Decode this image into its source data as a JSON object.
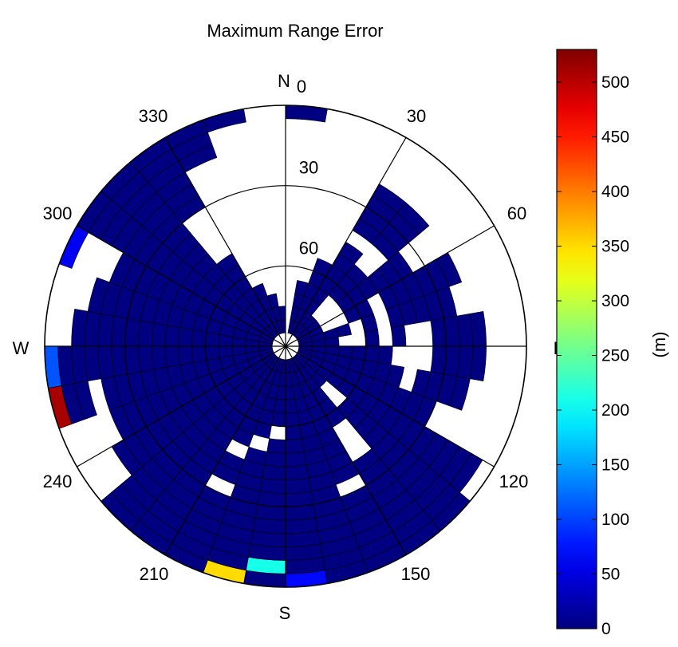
{
  "chart_data": {
    "type": "heatmap",
    "projection": "polar",
    "title": "Maximum Range Error",
    "azimuth_convention": "clockwise from north",
    "azimuth_ticks": [
      {
        "deg": 0,
        "label": "0"
      },
      {
        "deg": 30,
        "label": "30"
      },
      {
        "deg": 60,
        "label": "60"
      },
      {
        "deg": 120,
        "label": "120"
      },
      {
        "deg": 150,
        "label": "150"
      },
      {
        "deg": 210,
        "label": "210"
      },
      {
        "deg": 240,
        "label": "240"
      },
      {
        "deg": 300,
        "label": "300"
      },
      {
        "deg": 330,
        "label": "330"
      }
    ],
    "compass_labels": {
      "north": "N",
      "east": "E",
      "south": "S",
      "west": "W"
    },
    "elevation_ticks": [
      {
        "deg": 30,
        "label": "30"
      },
      {
        "deg": 60,
        "label": "60"
      }
    ],
    "elevation_range": [
      0,
      90
    ],
    "bin_width_deg": 10,
    "colorbar": {
      "label": "(m)",
      "range": [
        0,
        530
      ],
      "ticks": [
        {
          "value": 0,
          "label": "0"
        },
        {
          "value": 50,
          "label": "50"
        },
        {
          "value": 100,
          "label": "100"
        },
        {
          "value": 150,
          "label": "150"
        },
        {
          "value": 200,
          "label": "200"
        },
        {
          "value": 250,
          "label": "250"
        },
        {
          "value": 300,
          "label": "300"
        },
        {
          "value": 350,
          "label": "350"
        },
        {
          "value": 400,
          "label": "400"
        },
        {
          "value": 450,
          "label": "450"
        },
        {
          "value": 500,
          "label": "500"
        }
      ],
      "colormap": "jet"
    },
    "bins": [
      {
        "az": [
          0,
          10
        ],
        "elevations": [
          0
        ]
      },
      {
        "az": [
          10,
          20
        ],
        "elevations": [
          65,
          70,
          75,
          80
        ]
      },
      {
        "az": [
          20,
          30
        ],
        "elevations": [
          55,
          60,
          65,
          70,
          75,
          80
        ]
      },
      {
        "az": [
          30,
          40
        ],
        "elevations": [
          20,
          25,
          30,
          35,
          45,
          50,
          55,
          60,
          65,
          70,
          75,
          80
        ]
      },
      {
        "az": [
          40,
          50
        ],
        "elevations": [
          20,
          25,
          30,
          35,
          50,
          55,
          60,
          75,
          80
        ]
      },
      {
        "az": [
          50,
          60
        ],
        "elevations": [
          35,
          40,
          45,
          50,
          55,
          60,
          75,
          80
        ]
      },
      {
        "az": [
          60,
          70
        ],
        "elevations": [
          20,
          25,
          30,
          35,
          40,
          45,
          55,
          60,
          75,
          80
        ]
      },
      {
        "az": [
          70,
          80
        ],
        "elevations": [
          25,
          30,
          35,
          40,
          45,
          55,
          65,
          70,
          75,
          80
        ]
      },
      {
        "az": [
          80,
          90
        ],
        "elevations": [
          15,
          20,
          25,
          30,
          45,
          55,
          70,
          75,
          80
        ]
      },
      {
        "az": [
          90,
          100
        ],
        "elevations": [
          15,
          20,
          25,
          30,
          50,
          55,
          60,
          65,
          70,
          75,
          80
        ]
      },
      {
        "az": [
          100,
          110
        ],
        "elevations": [
          20,
          25,
          30,
          35,
          45,
          50,
          55,
          60,
          65,
          70,
          75,
          80
        ]
      },
      {
        "az": [
          110,
          120
        ],
        "elevations": [
          30,
          35,
          40,
          45,
          50,
          55,
          60,
          65,
          70,
          75,
          80
        ]
      },
      {
        "az": [
          120,
          130
        ],
        "elevations": [
          5,
          10,
          15,
          20,
          25,
          30,
          35,
          40,
          45,
          50,
          55,
          60,
          65,
          70,
          75,
          80
        ]
      },
      {
        "az": [
          130,
          140
        ],
        "elevations": [
          0,
          5,
          10,
          15,
          20,
          25,
          30,
          35,
          40,
          45,
          50,
          55,
          70,
          75,
          80
        ]
      },
      {
        "az": [
          140,
          150
        ],
        "elevations": [
          0,
          5,
          10,
          15,
          20,
          25,
          30,
          35,
          55,
          60,
          65,
          70,
          75,
          80
        ]
      },
      {
        "az": [
          150,
          160
        ],
        "elevations": [
          0,
          5,
          10,
          15,
          20,
          25,
          35,
          40,
          45,
          50,
          55,
          60,
          65,
          70,
          75,
          80
        ]
      },
      {
        "az": [
          160,
          170
        ],
        "elevations": [
          0,
          5,
          10,
          15,
          20,
          25,
          30,
          35,
          40,
          45,
          50,
          55,
          60,
          65,
          70,
          75,
          80
        ]
      },
      {
        "az": [
          170,
          180
        ],
        "elevations": [
          0,
          5,
          10,
          15,
          20,
          25,
          30,
          35,
          40,
          45,
          50,
          55,
          60,
          65,
          70,
          75,
          80
        ],
        "values": {
          "0": 70
        }
      },
      {
        "az": [
          180,
          190
        ],
        "elevations": [
          0,
          5,
          10,
          15,
          20,
          25,
          30,
          35,
          40,
          45,
          50,
          60,
          65,
          70,
          75,
          80
        ],
        "values": {
          "5": 210
        }
      },
      {
        "az": [
          190,
          200
        ],
        "elevations": [
          0,
          5,
          10,
          15,
          20,
          25,
          30,
          35,
          40,
          45,
          55,
          60,
          65,
          70,
          75,
          80
        ],
        "values": {
          "0": 350
        }
      },
      {
        "az": [
          200,
          210
        ],
        "elevations": [
          0,
          5,
          10,
          15,
          20,
          25,
          35,
          40,
          50,
          55,
          60,
          65,
          70,
          75,
          80
        ]
      },
      {
        "az": [
          210,
          220
        ],
        "elevations": [
          0,
          5,
          10,
          15,
          20,
          25,
          30,
          35,
          40,
          45,
          50,
          55,
          60,
          65,
          70,
          75,
          80
        ]
      },
      {
        "az": [
          220,
          230
        ],
        "elevations": [
          0,
          5,
          10,
          15,
          20,
          25,
          30,
          35,
          40,
          45,
          50,
          55,
          60,
          65,
          70,
          75,
          80
        ]
      },
      {
        "az": [
          230,
          240
        ],
        "elevations": [
          15,
          20,
          25,
          30,
          35,
          40,
          45,
          50,
          55,
          60,
          65,
          70,
          75,
          80
        ]
      },
      {
        "az": [
          240,
          250
        ],
        "elevations": [
          20,
          25,
          30,
          35,
          40,
          45,
          50,
          55,
          60,
          65,
          70,
          75,
          80
        ]
      },
      {
        "az": [
          250,
          260
        ],
        "elevations": [
          0,
          5,
          10,
          20,
          25,
          30,
          35,
          40,
          45,
          50,
          55,
          60,
          65,
          70,
          75,
          80
        ],
        "values": {
          "0": 510
        }
      },
      {
        "az": [
          260,
          270
        ],
        "elevations": [
          0,
          5,
          10,
          15,
          20,
          25,
          30,
          35,
          40,
          45,
          50,
          55,
          60,
          65,
          70,
          75,
          80
        ],
        "values": {
          "0": 110
        }
      },
      {
        "az": [
          270,
          280
        ],
        "elevations": [
          10,
          15,
          20,
          25,
          30,
          35,
          40,
          45,
          50,
          55,
          60,
          65,
          70,
          75,
          80
        ]
      },
      {
        "az": [
          280,
          290
        ],
        "elevations": [
          15,
          20,
          25,
          30,
          35,
          40,
          45,
          50,
          55,
          60,
          65,
          70,
          75,
          80
        ]
      },
      {
        "az": [
          290,
          300
        ],
        "elevations": [
          0,
          20,
          25,
          30,
          35,
          40,
          45,
          50,
          55,
          60,
          65,
          70,
          75,
          80
        ],
        "values": {
          "0": 60
        }
      },
      {
        "az": [
          300,
          310
        ],
        "elevations": [
          0,
          5,
          10,
          15,
          20,
          25,
          30,
          35,
          40,
          45,
          50,
          55,
          60,
          65,
          70,
          75,
          80
        ]
      },
      {
        "az": [
          310,
          320
        ],
        "elevations": [
          0,
          5,
          10,
          15,
          20,
          25,
          30,
          35,
          40,
          45,
          50,
          55,
          60,
          65,
          70,
          75,
          80
        ]
      },
      {
        "az": [
          320,
          330
        ],
        "elevations": [
          0,
          5,
          10,
          15,
          20,
          25,
          50,
          55,
          60,
          65,
          70,
          75,
          80
        ]
      },
      {
        "az": [
          330,
          340
        ],
        "elevations": [
          0,
          5,
          10,
          65,
          70,
          75,
          80
        ]
      },
      {
        "az": [
          340,
          350
        ],
        "elevations": [
          0,
          70,
          75,
          80
        ]
      },
      {
        "az": [
          350,
          360
        ],
        "elevations": [
          75,
          80
        ]
      }
    ]
  }
}
